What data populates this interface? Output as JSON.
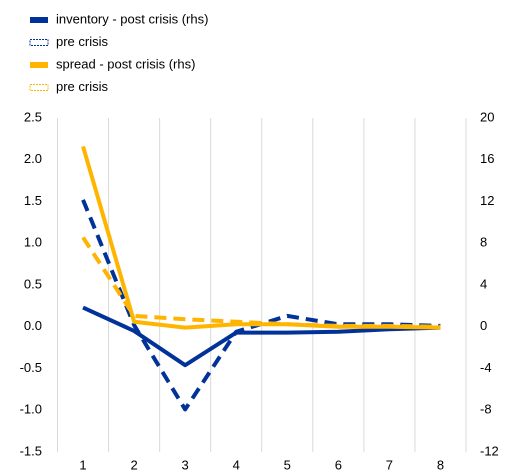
{
  "chart_data": {
    "type": "line",
    "categories": [
      "1",
      "2",
      "3",
      "4",
      "5",
      "6",
      "7",
      "8"
    ],
    "series": [
      {
        "name": "inventory - post crisis (rhs)",
        "color": "#003299",
        "dashed": false,
        "values": [
          0.23,
          -0.05,
          -0.46,
          -0.07,
          -0.07,
          -0.06,
          -0.03,
          -0.01
        ]
      },
      {
        "name": "pre crisis",
        "color": "#003299",
        "dashed": true,
        "values": [
          1.52,
          0.02,
          -0.99,
          -0.06,
          0.13,
          0.03,
          0.03,
          0.01
        ]
      },
      {
        "name": "spread - post crisis (rhs)",
        "color": "#ffb400",
        "dashed": false,
        "values": [
          2.16,
          0.06,
          -0.01,
          0.03,
          0.03,
          0.0,
          0.0,
          -0.01
        ]
      },
      {
        "name": "pre crisis",
        "color": "#ffb400",
        "dashed": true,
        "values": [
          1.07,
          0.13,
          0.09,
          0.06,
          0.03,
          0.01,
          0.01,
          0.0
        ]
      }
    ],
    "ylim": [
      -1.5,
      2.5
    ],
    "yticks": [
      2.5,
      {
        "value": 2,
        "label": "2.0"
      },
      1.5,
      {
        "value": 1,
        "label": "1.0"
      },
      0.5,
      {
        "value": 0,
        "label": "0.0"
      },
      -0.5,
      {
        "value": -1,
        "label": "-1.0"
      },
      -1.5
    ],
    "y2lim": [
      -12,
      20
    ],
    "y2ticks": [
      20,
      16,
      12,
      8,
      4,
      0,
      -4,
      -8,
      -12
    ],
    "grid": true
  }
}
